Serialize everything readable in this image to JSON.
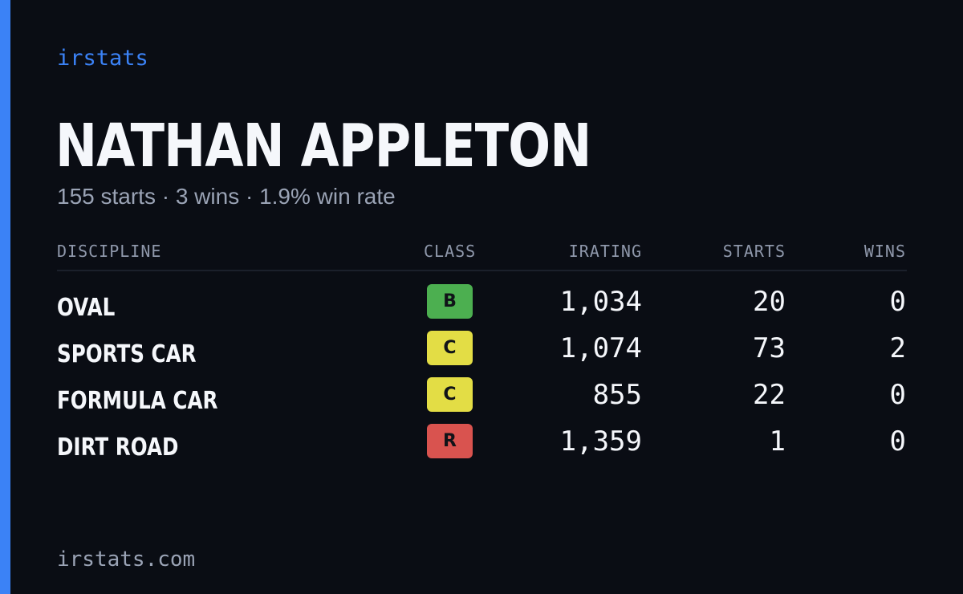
{
  "brand": "irstats",
  "driver": {
    "name": "NATHAN APPLETON",
    "summary": "155 starts · 3 wins · 1.9% win rate"
  },
  "table": {
    "headers": {
      "discipline": "DISCIPLINE",
      "class": "CLASS",
      "irating": "IRATING",
      "starts": "STARTS",
      "wins": "WINS"
    },
    "rows": [
      {
        "discipline": "OVAL",
        "class": "B",
        "class_color": "#4caf50",
        "irating": "1,034",
        "starts": "20",
        "wins": "0"
      },
      {
        "discipline": "SPORTS CAR",
        "class": "C",
        "class_color": "#e3dd45",
        "irating": "1,074",
        "starts": "73",
        "wins": "2"
      },
      {
        "discipline": "FORMULA CAR",
        "class": "C",
        "class_color": "#e3dd45",
        "irating": "855",
        "starts": "22",
        "wins": "0"
      },
      {
        "discipline": "DIRT ROAD",
        "class": "R",
        "class_color": "#d9534f",
        "irating": "1,359",
        "starts": "1",
        "wins": "0"
      }
    ]
  },
  "footer": "irstats.com",
  "colors": {
    "background": "#0a0d14",
    "accent": "#3b82f6",
    "text": "#f5f7fb",
    "muted": "#9aa3b5"
  }
}
